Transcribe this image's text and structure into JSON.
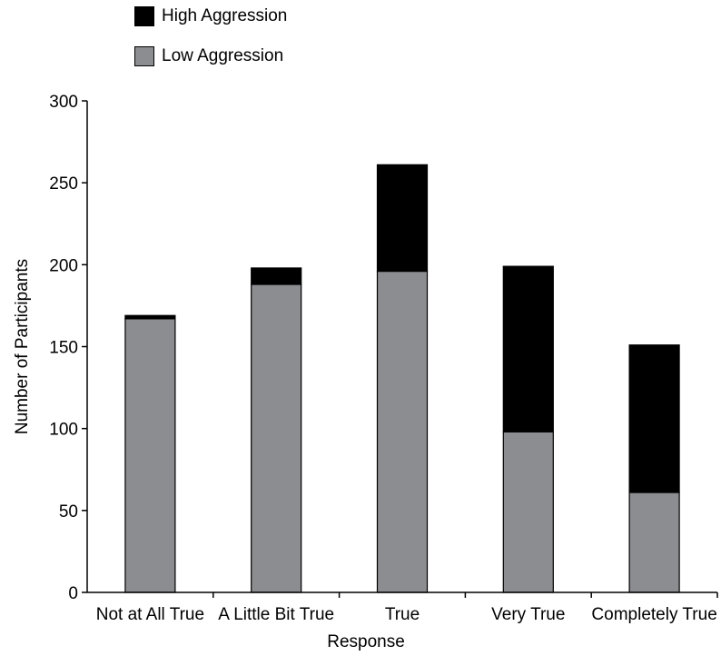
{
  "chart_data": {
    "type": "bar",
    "stacked": true,
    "categories": [
      "Not at All True",
      "A Little Bit True",
      "True",
      "Very True",
      "Completely True"
    ],
    "series": [
      {
        "name": "Low Aggression",
        "values": [
          167,
          188,
          196,
          98,
          61
        ],
        "color": "#8c8d90"
      },
      {
        "name": "High Aggression",
        "values": [
          2,
          10,
          65,
          101,
          90
        ],
        "color": "#000000"
      }
    ],
    "xlabel": "Response",
    "ylabel": "Number of Participants",
    "ylim": [
      0,
      300
    ],
    "yticks": [
      0,
      50,
      100,
      150,
      200,
      250,
      300
    ],
    "grid": false,
    "legend_position": "top-left"
  }
}
